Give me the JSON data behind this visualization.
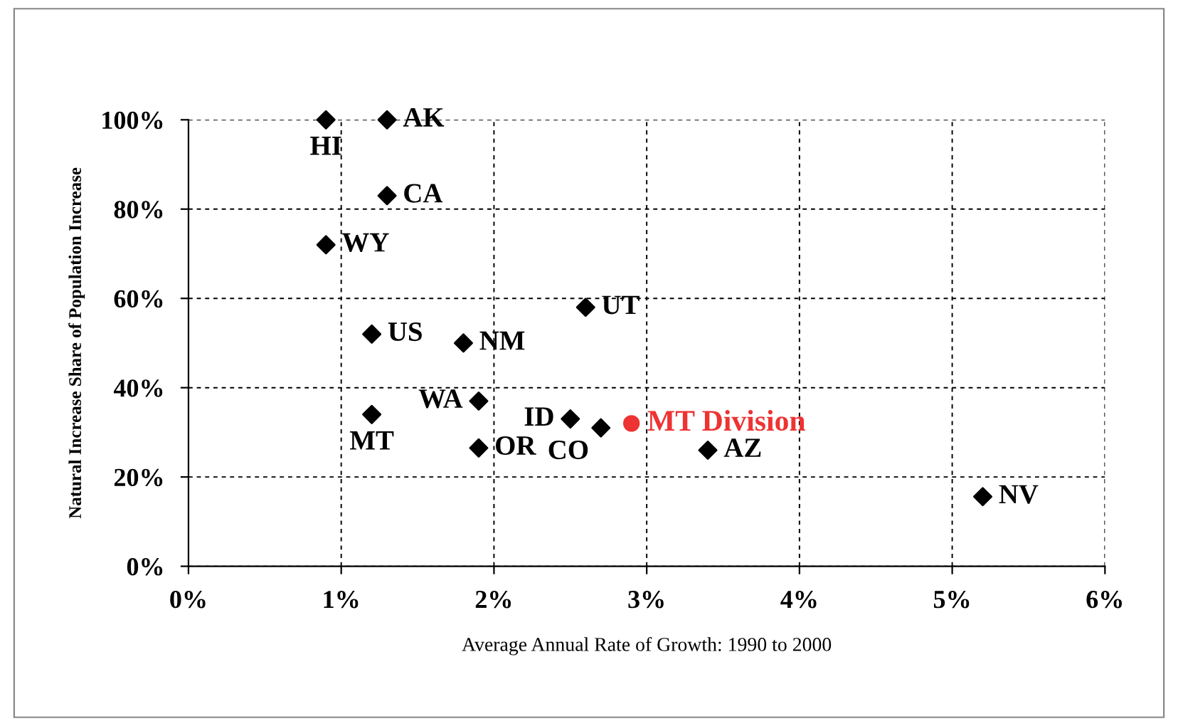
{
  "chart_data": {
    "type": "scatter",
    "xlabel": "Average Annual Rate of Growth: 1990 to 2000",
    "ylabel": "Natural Increase Share of Population Increase",
    "xlim": [
      0,
      6
    ],
    "ylim": [
      0,
      100
    ],
    "xticks": [
      {
        "value": 0,
        "label": "0%"
      },
      {
        "value": 1,
        "label": "1%"
      },
      {
        "value": 2,
        "label": "2%"
      },
      {
        "value": 3,
        "label": "3%"
      },
      {
        "value": 4,
        "label": "4%"
      },
      {
        "value": 5,
        "label": "5%"
      },
      {
        "value": 6,
        "label": "6%"
      }
    ],
    "yticks": [
      {
        "value": 0,
        "label": "0%"
      },
      {
        "value": 20,
        "label": "20%"
      },
      {
        "value": 40,
        "label": "40%"
      },
      {
        "value": 60,
        "label": "60%"
      },
      {
        "value": 80,
        "label": "80%"
      },
      {
        "value": 100,
        "label": "100%"
      }
    ],
    "grid": true,
    "legend": false,
    "series": [
      {
        "name": "HI",
        "color": "#000000",
        "marker": "diamond",
        "x": [
          0.9
        ],
        "values": [
          100
        ]
      },
      {
        "name": "AK",
        "color": "#000000",
        "marker": "diamond",
        "x": [
          1.3
        ],
        "values": [
          100
        ]
      },
      {
        "name": "CA",
        "color": "#000000",
        "marker": "diamond",
        "x": [
          1.3
        ],
        "values": [
          83
        ]
      },
      {
        "name": "WY",
        "color": "#000000",
        "marker": "diamond",
        "x": [
          0.9
        ],
        "values": [
          72
        ]
      },
      {
        "name": "UT",
        "color": "#000000",
        "marker": "diamond",
        "x": [
          2.6
        ],
        "values": [
          58
        ]
      },
      {
        "name": "US",
        "color": "#000000",
        "marker": "diamond",
        "x": [
          1.2
        ],
        "values": [
          52
        ]
      },
      {
        "name": "NM",
        "color": "#000000",
        "marker": "diamond",
        "x": [
          1.8
        ],
        "values": [
          50
        ]
      },
      {
        "name": "WA",
        "color": "#000000",
        "marker": "diamond",
        "x": [
          1.9
        ],
        "values": [
          37
        ]
      },
      {
        "name": "ID",
        "color": "#000000",
        "marker": "diamond",
        "x": [
          2.5
        ],
        "values": [
          33
        ]
      },
      {
        "name": "MT",
        "color": "#000000",
        "marker": "diamond",
        "x": [
          1.2
        ],
        "values": [
          34
        ]
      },
      {
        "name": "CO",
        "color": "#000000",
        "marker": "diamond",
        "x": [
          2.7
        ],
        "values": [
          31
        ]
      },
      {
        "name": "MT Division",
        "color": "#ee3333",
        "marker": "circle",
        "x": [
          2.9
        ],
        "values": [
          32
        ]
      },
      {
        "name": "OR",
        "color": "#000000",
        "marker": "diamond",
        "x": [
          1.9
        ],
        "values": [
          26.5
        ]
      },
      {
        "name": "AZ",
        "color": "#000000",
        "marker": "diamond",
        "x": [
          3.4
        ],
        "values": [
          26
        ]
      },
      {
        "name": "NV",
        "color": "#000000",
        "marker": "diamond",
        "x": [
          5.2
        ],
        "values": [
          15.6
        ]
      }
    ]
  }
}
